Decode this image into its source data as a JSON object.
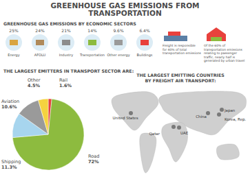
{
  "title_lines": [
    "GREENHOUSE GAS EMISSIONS FROM",
    "TRANSPORTATION"
  ],
  "sectors": {
    "title": "GREENHOUSE GAS EMISSIONS BY ECONOMIC SECTORS",
    "items": [
      {
        "value": "25%",
        "label": "Energy"
      },
      {
        "value": "24%",
        "label": "AFOLU"
      },
      {
        "value": "21%",
        "label": "Industry"
      },
      {
        "value": "14%",
        "label": "Transportation"
      },
      {
        "value": "9.6%",
        "label": "Other energy"
      },
      {
        "value": "6.4%",
        "label": "Buildings"
      }
    ]
  },
  "notes": [
    "Freight is responsible for 40% of total transportation emissions",
    "Of the 60% of transportation emissions relating to passenger traffic, nearly half is generated by urban travel"
  ],
  "chart_data": {
    "type": "pie",
    "title": "THE LARGEST EMITTERS IN TRANSPORT SECTOR ARE:",
    "categories": [
      "Rail",
      "Road",
      "Shipping",
      "Aviation",
      "Other"
    ],
    "values": [
      1.6,
      72,
      11.3,
      10.6,
      4.5
    ],
    "value_labels": [
      "1.6%",
      "72%",
      "11.3%",
      "10.6%",
      "4.5%"
    ],
    "colors": [
      "#e8413c",
      "#8dbb3f",
      "#a7d5ee",
      "#9a9a9a",
      "#f5d33f"
    ],
    "data_labels": true
  },
  "map": {
    "title": "THE LARGEST EMITTING COUNTRIES BY FREIGHT AIR TRANSPORT:",
    "countries": [
      "United States",
      "Qatar",
      "UAE",
      "China",
      "Japan",
      "Korea, Rep."
    ]
  }
}
